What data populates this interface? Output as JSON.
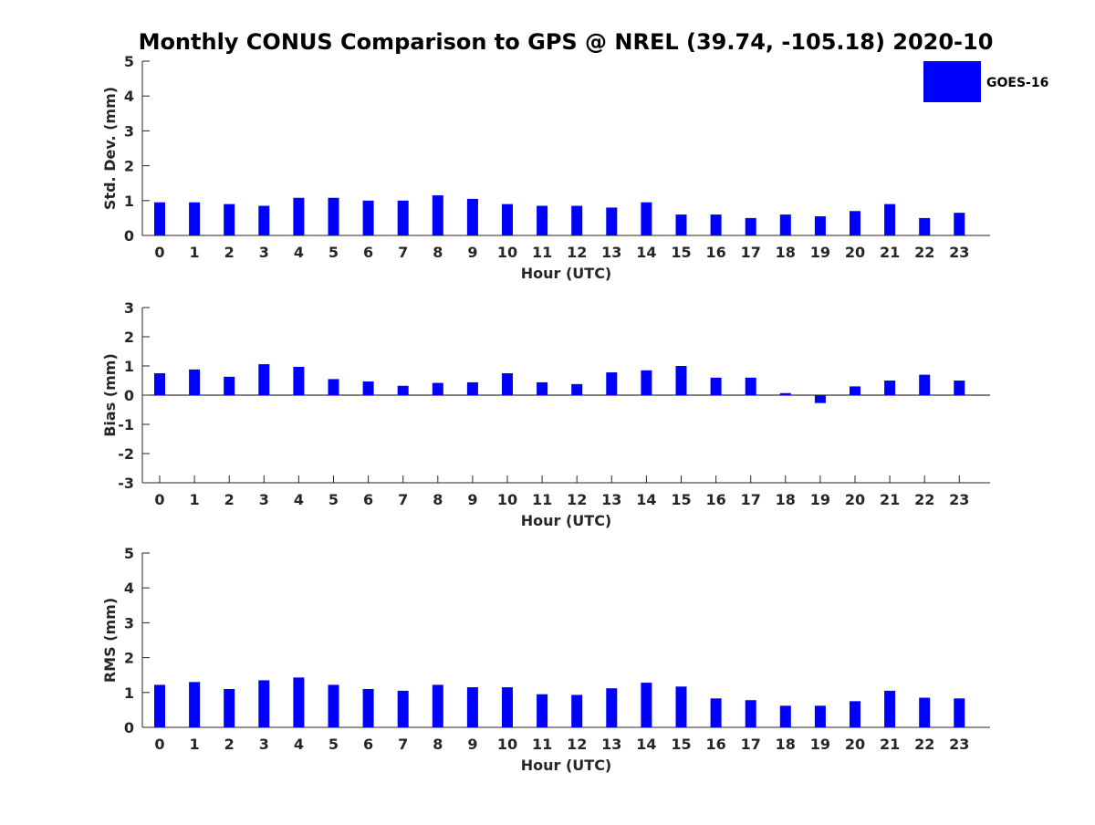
{
  "title": "Monthly CONUS Comparison to GPS @ NREL (39.74, -105.18) 2020-10",
  "legend": {
    "label": "GOES-16",
    "color": "#0000ff"
  },
  "chart_data": [
    {
      "type": "bar",
      "ylabel": "Std. Dev. (mm)",
      "xlabel": "Hour (UTC)",
      "ylim": [
        0,
        5
      ],
      "yticks": [
        0,
        1,
        2,
        3,
        4,
        5
      ],
      "categories": [
        "0",
        "1",
        "2",
        "3",
        "4",
        "5",
        "6",
        "7",
        "8",
        "9",
        "10",
        "11",
        "12",
        "13",
        "14",
        "15",
        "16",
        "17",
        "18",
        "19",
        "20",
        "21",
        "22",
        "23"
      ],
      "series": [
        {
          "name": "GOES-16",
          "values": [
            0.95,
            0.95,
            0.9,
            0.85,
            1.08,
            1.08,
            1.0,
            1.0,
            1.15,
            1.05,
            0.9,
            0.85,
            0.85,
            0.8,
            0.95,
            0.6,
            0.6,
            0.5,
            0.6,
            0.55,
            0.7,
            0.9,
            0.5,
            0.65
          ]
        }
      ]
    },
    {
      "type": "bar",
      "ylabel": "Bias (mm)",
      "xlabel": "Hour (UTC)",
      "ylim": [
        -3,
        3
      ],
      "yticks": [
        -3,
        -2,
        -1,
        0,
        1,
        2,
        3
      ],
      "categories": [
        "0",
        "1",
        "2",
        "3",
        "4",
        "5",
        "6",
        "7",
        "8",
        "9",
        "10",
        "11",
        "12",
        "13",
        "14",
        "15",
        "16",
        "17",
        "18",
        "19",
        "20",
        "21",
        "22",
        "23"
      ],
      "series": [
        {
          "name": "GOES-16",
          "values": [
            0.75,
            0.88,
            0.63,
            1.06,
            0.97,
            0.55,
            0.47,
            0.32,
            0.42,
            0.44,
            0.75,
            0.44,
            0.38,
            0.78,
            0.85,
            1.0,
            0.6,
            0.6,
            0.07,
            -0.27,
            0.3,
            0.5,
            0.7,
            0.5
          ]
        }
      ]
    },
    {
      "type": "bar",
      "ylabel": "RMS (mm)",
      "xlabel": "Hour (UTC)",
      "ylim": [
        0,
        5
      ],
      "yticks": [
        0,
        1,
        2,
        3,
        4,
        5
      ],
      "categories": [
        "0",
        "1",
        "2",
        "3",
        "4",
        "5",
        "6",
        "7",
        "8",
        "9",
        "10",
        "11",
        "12",
        "13",
        "14",
        "15",
        "16",
        "17",
        "18",
        "19",
        "20",
        "21",
        "22",
        "23"
      ],
      "series": [
        {
          "name": "GOES-16",
          "values": [
            1.22,
            1.3,
            1.1,
            1.35,
            1.43,
            1.22,
            1.1,
            1.05,
            1.22,
            1.15,
            1.15,
            0.95,
            0.93,
            1.12,
            1.28,
            1.17,
            0.83,
            0.78,
            0.62,
            0.62,
            0.75,
            1.05,
            0.85,
            0.83
          ]
        }
      ]
    }
  ]
}
